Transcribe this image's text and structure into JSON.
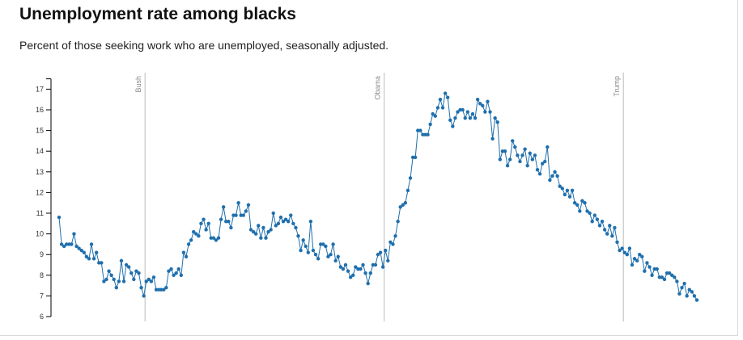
{
  "header": {
    "title": "Unemployment rate among blacks",
    "subtitle": "Percent of those seeking work who are unemployed, seasonally adjusted."
  },
  "chart_data": {
    "type": "line",
    "title": "Unemployment rate among blacks",
    "subtitle": "Percent of those seeking work who are unemployed, seasonally adjusted.",
    "xlabel": "",
    "ylabel": "",
    "ylim": [
      6,
      17.5
    ],
    "yticks": [
      6,
      7,
      8,
      9,
      10,
      11,
      12,
      13,
      14,
      15,
      16,
      17
    ],
    "grid": false,
    "line_color": "#1f6fad",
    "event_color": "#bbbbbb",
    "events": [
      {
        "label": "Bush",
        "at": 34.5
      },
      {
        "label": "Obama",
        "at": 130.5
      },
      {
        "label": "Trump",
        "at": 226.5
      }
    ],
    "series": [
      {
        "values": [
          10.8,
          9.5,
          9.4,
          9.5,
          9.5,
          9.5,
          10.0,
          9.4,
          9.3,
          9.2,
          9.1,
          8.9,
          8.8,
          9.5,
          8.8,
          9.1,
          8.6,
          8.6,
          7.7,
          7.8,
          8.2,
          8.0,
          7.8,
          7.4,
          7.7,
          8.7,
          7.7,
          8.5,
          8.4,
          8.1,
          7.8,
          8.2,
          8.1,
          7.4,
          7.0,
          7.7,
          7.8,
          7.7,
          7.9,
          7.3,
          7.3,
          7.3,
          7.3,
          7.4,
          8.2,
          8.3,
          8.0,
          8.1,
          8.3,
          8.0,
          9.1,
          8.9,
          9.5,
          9.7,
          10.1,
          10.0,
          9.9,
          10.5,
          10.7,
          10.2,
          10.5,
          9.8,
          9.8,
          9.7,
          9.8,
          10.7,
          11.3,
          10.6,
          10.6,
          10.3,
          10.9,
          10.9,
          11.5,
          10.9,
          10.9,
          11.1,
          11.4,
          10.2,
          10.1,
          10.0,
          10.4,
          9.8,
          10.3,
          9.8,
          10.1,
          10.2,
          11.0,
          10.4,
          10.5,
          10.8,
          10.6,
          10.7,
          10.6,
          10.9,
          10.5,
          10.3,
          9.9,
          9.2,
          9.7,
          9.4,
          9.1,
          10.6,
          9.2,
          9.0,
          8.8,
          9.5,
          9.5,
          9.4,
          8.9,
          9.0,
          9.5,
          8.7,
          8.9,
          8.4,
          8.3,
          8.5,
          8.2,
          7.9,
          8.0,
          8.4,
          8.3,
          8.3,
          8.5,
          8.1,
          7.6,
          8.1,
          8.5,
          8.5,
          9.0,
          9.1,
          8.4,
          9.2,
          8.7,
          9.6,
          9.5,
          9.9,
          10.6,
          11.3,
          11.4,
          11.5,
          12.1,
          12.7,
          13.7,
          13.7,
          15.0,
          15.0,
          14.8,
          14.8,
          14.8,
          15.3,
          15.8,
          15.7,
          16.1,
          16.5,
          16.1,
          16.8,
          16.6,
          15.5,
          15.2,
          15.6,
          15.9,
          16.0,
          16.0,
          15.6,
          15.9,
          15.6,
          15.8,
          15.6,
          16.5,
          16.3,
          16.2,
          15.9,
          16.4,
          15.9,
          14.6,
          15.6,
          15.4,
          13.6,
          14.0,
          14.0,
          13.3,
          13.6,
          14.5,
          14.2,
          13.8,
          13.5,
          13.8,
          14.1,
          13.3,
          13.9,
          13.6,
          13.8,
          13.1,
          12.9,
          13.4,
          13.5,
          14.2,
          12.6,
          12.8,
          13.0,
          12.8,
          12.3,
          12.2,
          11.9,
          12.1,
          11.8,
          12.1,
          11.5,
          11.4,
          11.1,
          11.6,
          11.5,
          11.1,
          11.0,
          10.6,
          10.9,
          10.7,
          10.4,
          10.6,
          10.2,
          10.0,
          10.4,
          9.9,
          10.3,
          9.6,
          9.2,
          9.3,
          9.1,
          9.0,
          9.3,
          8.5,
          8.8,
          8.7,
          9.0,
          8.9,
          8.2,
          8.6,
          8.4,
          8.0,
          8.3,
          8.3,
          7.9,
          7.9,
          7.8,
          8.1,
          8.1,
          8.0,
          7.9,
          7.7,
          7.1,
          7.4,
          7.6,
          7.0,
          7.3,
          7.2,
          7.0,
          6.8
        ]
      }
    ]
  }
}
